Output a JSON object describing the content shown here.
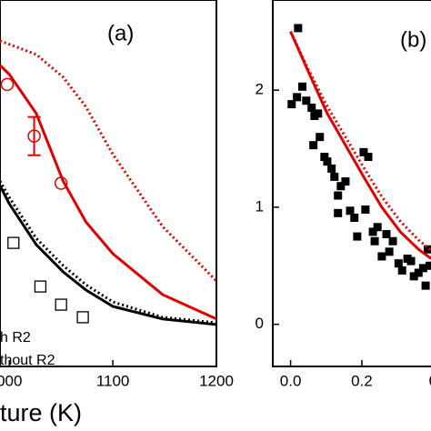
{
  "chart_data": [
    {
      "type": "line",
      "panel_label": "(a)",
      "xlabel": "ture (K)",
      "legend": [
        "h R2",
        "thout R2"
      ],
      "xlim": [
        991,
        1200
      ],
      "ylim": [
        -0.05,
        1
      ],
      "xticks": [
        {
          "value": 1000,
          "label": "000"
        },
        1100,
        1200
      ],
      "series": [
        {
          "kind": "line",
          "color": "#e00000",
          "dash": false,
          "x": [
            991,
            1000,
            1026,
            1052,
            1074,
            1100,
            1148,
            1200
          ],
          "values": [
            0.813,
            0.787,
            0.675,
            0.481,
            0.364,
            0.273,
            0.156,
            0.086
          ]
        },
        {
          "kind": "line",
          "color": "#e00000",
          "dash": true,
          "x": [
            991,
            1026,
            1052,
            1074,
            1100,
            1148,
            1200
          ],
          "values": [
            0.883,
            0.844,
            0.779,
            0.694,
            0.558,
            0.351,
            0.195
          ]
        },
        {
          "kind": "line",
          "color": "#000000",
          "dash": false,
          "x": [
            991,
            1000,
            1026,
            1052,
            1074,
            1100,
            1148,
            1200
          ],
          "values": [
            0.468,
            0.416,
            0.299,
            0.221,
            0.169,
            0.122,
            0.086,
            0.07
          ]
        },
        {
          "kind": "line",
          "color": "#000000",
          "dash": true,
          "x": [
            991,
            1000,
            1026,
            1052,
            1074,
            1100,
            1148,
            1200
          ],
          "values": [
            0.481,
            0.434,
            0.317,
            0.239,
            0.184,
            0.135,
            0.091,
            0.075
          ]
        },
        {
          "kind": "circle",
          "color": "#e00000",
          "x": [
            998,
            1024,
            1050
          ],
          "values": [
            0.758,
            0.61,
            0.475
          ],
          "errors": [
            null,
            0.055,
            null
          ]
        },
        {
          "kind": "square",
          "color": "#000000",
          "x": [
            1004,
            1030,
            1050,
            1071
          ],
          "values": [
            0.304,
            0.179,
            0.127,
            0.091
          ]
        }
      ]
    },
    {
      "type": "scatter",
      "panel_label": "(b)",
      "xlim": [
        -0.05,
        0.44
      ],
      "ylim": [
        -0.36,
        2.77
      ],
      "xticks": [
        {
          "value": 0,
          "label": "0.0"
        },
        0.2,
        {
          "value": 0.4,
          "label": "0"
        }
      ],
      "yticks": [
        0,
        1,
        2
      ],
      "series": [
        {
          "kind": "filled-square",
          "color": "#000000",
          "x": [
            0.021,
            0.003,
            0.018,
            0.033,
            0.044,
            0.059,
            0.067,
            0.077,
            0.064,
            0.082,
            0.095,
            0.103,
            0.115,
            0.123,
            0.133,
            0.141,
            0.133,
            0.154,
            0.167,
            0.179,
            0.187,
            0.205,
            0.218,
            0.21,
            0.231,
            0.236,
            0.244,
            0.256,
            0.269,
            0.277,
            0.287,
            0.303,
            0.313,
            0.328,
            0.338,
            0.346,
            0.359,
            0.372,
            0.379,
            0.385,
            0.39
          ],
          "values": [
            2.53,
            1.88,
            1.94,
            2.03,
            1.91,
            1.85,
            1.78,
            1.8,
            1.53,
            1.6,
            1.43,
            1.39,
            1.33,
            1.26,
            1.1,
            1.18,
            0.95,
            1.22,
            0.97,
            0.91,
            0.75,
            1.47,
            1.43,
            0.98,
            0.79,
            0.71,
            0.83,
            0.58,
            0.77,
            0.62,
            0.71,
            0.52,
            0.46,
            0.56,
            0.54,
            0.41,
            0.44,
            0.48,
            0.33,
            0.64,
            0.5
          ]
        },
        {
          "kind": "line",
          "color": "#e00000",
          "dash": true,
          "x": [
            0,
            0.051,
            0.103,
            0.154,
            0.205,
            0.256,
            0.308,
            0.359,
            0.395
          ],
          "values": [
            2.5,
            2.17,
            1.86,
            1.6,
            1.34,
            1.09,
            0.88,
            0.72,
            0.63
          ]
        },
        {
          "kind": "line",
          "color": "#e00000",
          "dash": false,
          "x": [
            0,
            0.051,
            0.103,
            0.154,
            0.205,
            0.256,
            0.308,
            0.359,
            0.395
          ],
          "values": [
            2.5,
            2.15,
            1.8,
            1.53,
            1.26,
            1.0,
            0.79,
            0.64,
            0.56
          ]
        }
      ]
    }
  ]
}
